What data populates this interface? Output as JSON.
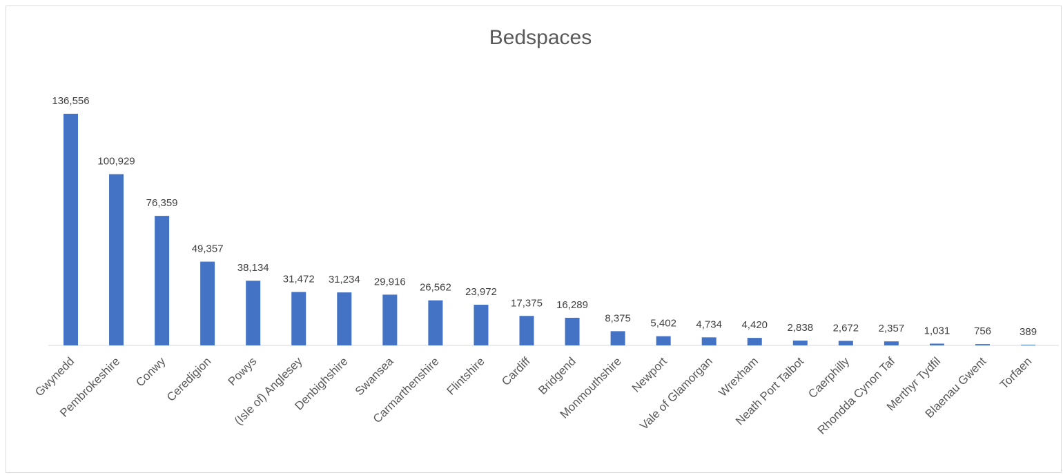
{
  "chart_data": {
    "type": "bar",
    "title": "Bedspaces",
    "xlabel": "",
    "ylabel": "",
    "ylim": [
      0,
      140000
    ],
    "grid": false,
    "legend": "none",
    "bar_color": "#4472C4",
    "categories": [
      "Gwynedd",
      "Pembrokeshire",
      "Conwy",
      "Ceredigion",
      "Powys",
      "(Isle of) Anglesey",
      "Denbighshire",
      "Swansea",
      "Carmarthenshire",
      "Flintshire",
      "Cardiff",
      "Bridgend",
      "Monmouthshire",
      "Newport",
      "Vale of Glamorgan",
      "Wrexham",
      "Neath Port Talbot",
      "Caerphilly",
      "Rhondda Cynon Taf",
      "Merthyr Tydfil",
      "Blaenau Gwent",
      "Torfaen"
    ],
    "values": [
      136556,
      100929,
      76359,
      49357,
      38134,
      31472,
      31234,
      29916,
      26562,
      23972,
      17375,
      16289,
      8375,
      5402,
      4734,
      4420,
      2838,
      2672,
      2357,
      1031,
      756,
      389
    ],
    "data_labels": [
      "136,556",
      "100,929",
      "76,359",
      "49,357",
      "38,134",
      "31,472",
      "31,234",
      "29,916",
      "26,562",
      "23,972",
      "17,375",
      "16,289",
      "8,375",
      "5,402",
      "4,734",
      "4,420",
      "2,838",
      "2,672",
      "2,357",
      "1,031",
      "756",
      "389"
    ]
  }
}
